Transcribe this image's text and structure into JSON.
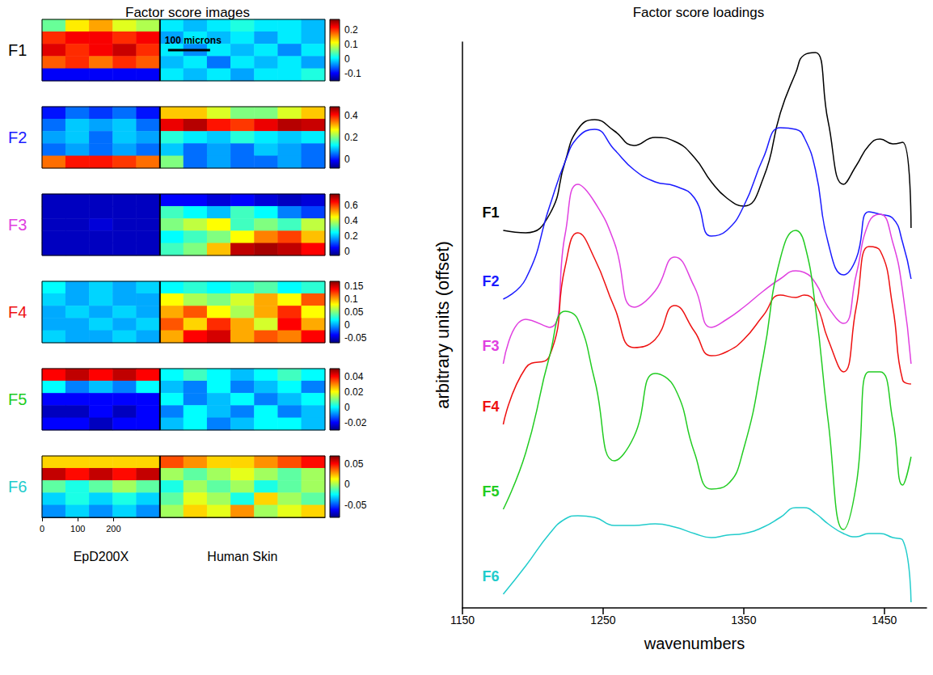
{
  "chart_data": [
    {
      "type": "heatmap",
      "title": "Factor score images",
      "samples": [
        {
          "name": "EpD200X",
          "columns": 5
        },
        {
          "name": "Human Skin",
          "columns": 7
        }
      ],
      "scale_bar": "100 microns",
      "xlim": [
        0,
        792
      ],
      "xticks": [
        0,
        100,
        200
      ],
      "panels": [
        {
          "name": "F1",
          "color": "#000000",
          "colorbar": {
            "range": [
              -0.15,
              0.27
            ],
            "ticks": [
              0.2,
              0.1,
              0,
              -0.1
            ]
          },
          "cells": [
            [
              0.05,
              0.12,
              0.15,
              0.1,
              0.08,
              0,
              -0.02,
              0,
              0.02,
              0,
              0,
              -0.02
            ],
            [
              0.2,
              0.22,
              0.22,
              0.2,
              0.22,
              -0.03,
              0,
              -0.02,
              0,
              -0.03,
              0,
              -0.02
            ],
            [
              0.23,
              0.2,
              0.22,
              0.24,
              0.2,
              0,
              -0.04,
              0,
              -0.02,
              0,
              -0.04,
              0
            ],
            [
              0.18,
              0.2,
              0.17,
              0.2,
              0.18,
              -0.02,
              0,
              -0.05,
              0,
              -0.02,
              0,
              -0.03
            ],
            [
              -0.1,
              -0.1,
              -0.1,
              -0.1,
              -0.1,
              0,
              -0.02,
              0,
              -0.03,
              0,
              0,
              0.02
            ]
          ]
        },
        {
          "name": "F2",
          "color": "#1a1aff",
          "colorbar": {
            "range": [
              -0.08,
              0.48
            ],
            "ticks": [
              0.4,
              0.2,
              0
            ]
          },
          "cells": [
            [
              0,
              0.05,
              0.02,
              0.05,
              0,
              0.3,
              0.3,
              0.25,
              0.2,
              0.2,
              0.25,
              0.3
            ],
            [
              0.05,
              0.1,
              0.08,
              0.1,
              0.05,
              0.42,
              0.45,
              0.4,
              0.38,
              0.42,
              0.45,
              0.44
            ],
            [
              0.08,
              0.1,
              0.05,
              0.1,
              0.08,
              0.15,
              0.12,
              0.1,
              0.15,
              0.12,
              0.1,
              0.12
            ],
            [
              0.05,
              0.08,
              0.05,
              0.08,
              0.05,
              0.1,
              0.05,
              0.08,
              0.05,
              0.1,
              0.08,
              0.05
            ],
            [
              0.35,
              0.4,
              0.4,
              0.38,
              0.35,
              0.2,
              0.05,
              0.08,
              0.05,
              0.05,
              0.08,
              0.05
            ]
          ]
        },
        {
          "name": "F3",
          "color": "#e040e0",
          "colorbar": {
            "range": [
              -0.05,
              0.75
            ],
            "ticks": [
              0.6,
              0.4,
              0.2,
              0
            ]
          },
          "cells": [
            [
              0,
              0,
              0,
              0,
              0,
              0.05,
              0.05,
              0.02,
              0.05,
              0.02,
              0,
              0.02
            ],
            [
              0,
              0,
              0,
              0,
              0,
              0.3,
              0.25,
              0.2,
              0.3,
              0.25,
              0.15,
              0.1
            ],
            [
              0,
              0,
              0.02,
              0,
              0,
              0.35,
              0.4,
              0.45,
              0.3,
              0.35,
              0.3,
              0.4
            ],
            [
              0,
              0,
              0,
              0,
              0,
              0.25,
              0.3,
              0.35,
              0.45,
              0.55,
              0.6,
              0.5
            ],
            [
              0,
              0,
              0,
              0,
              0,
              0.3,
              0.35,
              0.5,
              0.7,
              0.72,
              0.7,
              0.65
            ]
          ]
        },
        {
          "name": "F4",
          "color": "#ee1111",
          "colorbar": {
            "range": [
              -0.07,
              0.17
            ],
            "ticks": [
              0.15,
              0.1,
              0.05,
              0,
              -0.05
            ]
          },
          "cells": [
            [
              0.02,
              0,
              0.01,
              0,
              0.01,
              0.02,
              0.03,
              0.02,
              0.03,
              0.04,
              0.02,
              0.03
            ],
            [
              0.01,
              0,
              0.01,
              0,
              0,
              0.08,
              0.06,
              0.05,
              0.07,
              0.1,
              0.08,
              0.12
            ],
            [
              0,
              0.01,
              0,
              0.01,
              0,
              0.1,
              0.12,
              0.08,
              0.06,
              0.1,
              0.13,
              0.08
            ],
            [
              0,
              0,
              0.01,
              0,
              0.01,
              0.12,
              0.09,
              0.13,
              0.1,
              0.07,
              0.14,
              0.1
            ],
            [
              0.01,
              0,
              0,
              0.01,
              0,
              0.1,
              0.14,
              0.15,
              0.1,
              0.12,
              0.11,
              0.14
            ]
          ]
        },
        {
          "name": "F5",
          "color": "#22cc22",
          "colorbar": {
            "range": [
              -0.03,
              0.05
            ],
            "ticks": [
              0.04,
              0.02,
              0,
              -0.02
            ]
          },
          "cells": [
            [
              0.04,
              0.045,
              0.04,
              0.045,
              0.04,
              0,
              0.005,
              0,
              -0.005,
              0,
              0.005,
              0
            ],
            [
              0,
              -0.01,
              -0.005,
              -0.01,
              0,
              -0.005,
              -0.01,
              0,
              -0.01,
              -0.005,
              0,
              -0.01
            ],
            [
              -0.02,
              -0.02,
              -0.02,
              -0.02,
              -0.02,
              0,
              -0.01,
              -0.005,
              0,
              -0.01,
              -0.005,
              0
            ],
            [
              -0.025,
              -0.025,
              -0.02,
              -0.025,
              -0.02,
              -0.01,
              0,
              -0.005,
              -0.01,
              0,
              -0.01,
              -0.005
            ],
            [
              -0.02,
              -0.02,
              -0.025,
              -0.02,
              -0.02,
              -0.005,
              0,
              -0.01,
              -0.005,
              0,
              0,
              -0.005
            ]
          ]
        },
        {
          "name": "F6",
          "color": "#22cccc",
          "colorbar": {
            "range": [
              -0.08,
              0.07
            ],
            "ticks": [
              0.05,
              0,
              -0.05
            ]
          },
          "cells": [
            [
              0.02,
              0.02,
              0.02,
              0.02,
              0.02,
              0.04,
              0.03,
              0.02,
              0.02,
              0.03,
              0.04,
              0.05
            ],
            [
              0.06,
              0.05,
              0.06,
              0.05,
              0.06,
              0,
              -0.01,
              0,
              0.01,
              0,
              -0.01,
              0
            ],
            [
              -0.01,
              -0.02,
              -0.01,
              0,
              -0.01,
              -0.02,
              0,
              -0.01,
              0,
              -0.02,
              -0.01,
              0
            ],
            [
              -0.03,
              -0.02,
              -0.03,
              -0.02,
              -0.03,
              -0.01,
              0.01,
              0,
              -0.02,
              0.02,
              0,
              -0.01
            ],
            [
              -0.04,
              -0.03,
              -0.04,
              -0.03,
              -0.04,
              0,
              0.02,
              0.01,
              0.03,
              0,
              0.01,
              0.02
            ]
          ]
        }
      ]
    },
    {
      "type": "line",
      "title": "Factor score loadings",
      "x_label": "wavenumbers",
      "y_label": "arbitrary units (offset)",
      "xlim": [
        1150,
        1480
      ],
      "xticks": [
        1150,
        1250,
        1350,
        1450
      ],
      "ylim": [
        0,
        700
      ],
      "tick_labels": "x",
      "x": [
        1179,
        1195,
        1212,
        1223,
        1232,
        1244,
        1258,
        1272,
        1287,
        1301,
        1315,
        1327,
        1338,
        1350,
        1364,
        1376,
        1387,
        1393,
        1401,
        1410,
        1421,
        1430,
        1439,
        1447,
        1456,
        1463,
        1469
      ],
      "series": [
        {
          "name": "F1",
          "color": "#000000",
          "values": [
            467,
            464,
            487,
            552,
            592,
            604,
            590,
            572,
            582,
            577,
            557,
            527,
            507,
            497,
            532,
            612,
            662,
            684,
            687,
            602,
            524,
            547,
            572,
            580,
            574,
            576,
            470
          ]
        },
        {
          "name": "F2",
          "color": "#1a1aff",
          "values": [
            382,
            407,
            497,
            552,
            582,
            592,
            567,
            542,
            527,
            522,
            507,
            460,
            467,
            497,
            557,
            594,
            592,
            582,
            542,
            452,
            412,
            432,
            490,
            487,
            482,
            452,
            407
          ]
        },
        {
          "name": "F3",
          "color": "#e040e0",
          "values": [
            302,
            357,
            347,
            462,
            524,
            502,
            452,
            372,
            392,
            434,
            397,
            347,
            357,
            372,
            392,
            407,
            417,
            415,
            402,
            372,
            352,
            412,
            477,
            487,
            452,
            392,
            302
          ]
        },
        {
          "name": "F4",
          "color": "#ee1111",
          "values": [
            227,
            297,
            312,
            422,
            464,
            432,
            372,
            322,
            332,
            374,
            342,
            312,
            317,
            332,
            362,
            387,
            384,
            387,
            377,
            332,
            292,
            372,
            447,
            442,
            372,
            282,
            277
          ]
        },
        {
          "name": "F5",
          "color": "#22cc22",
          "values": [
            122,
            192,
            312,
            367,
            357,
            282,
            182,
            212,
            290,
            272,
            192,
            147,
            152,
            197,
            312,
            432,
            467,
            452,
            372,
            232,
            97,
            152,
            292,
            292,
            232,
            152,
            187
          ]
        },
        {
          "name": "F6",
          "color": "#22cccc",
          "values": [
            17,
            52,
            92,
            110,
            114,
            112,
            102,
            102,
            104,
            100,
            92,
            87,
            90,
            92,
            100,
            112,
            124,
            124,
            117,
            104,
            92,
            88,
            92,
            92,
            87,
            84,
            7
          ]
        }
      ]
    }
  ]
}
